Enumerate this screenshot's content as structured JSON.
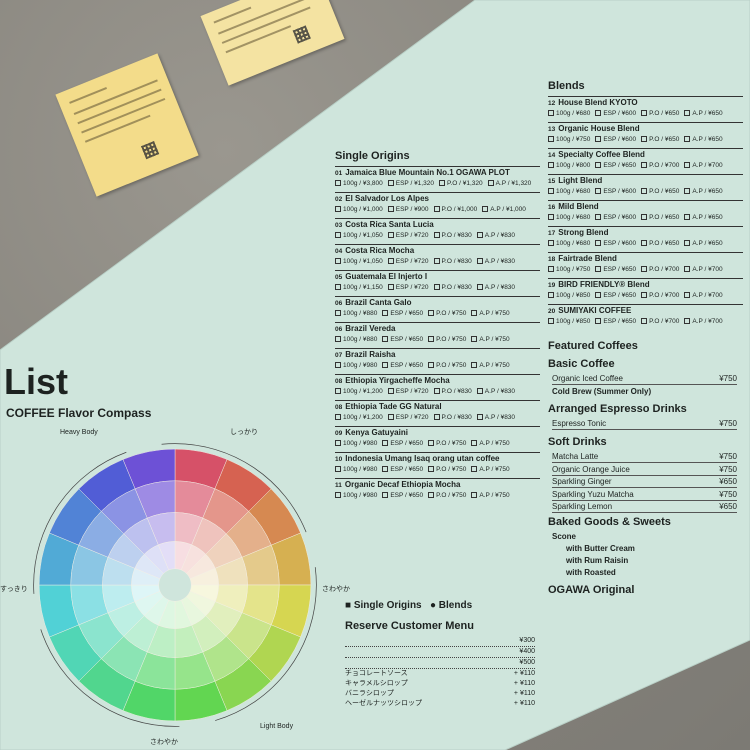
{
  "menu": {
    "title": "List",
    "compass_title": "COFFEE Flavor Compass",
    "wheel_labels": {
      "top": "しっかり",
      "right": "さわやか",
      "bottom": "さわやか",
      "left": "すっきり",
      "full_body": "Heavy Body",
      "light_body": "Light Body"
    },
    "legend": {
      "single": "Single Origins",
      "blends": "Blends"
    },
    "single_origins": {
      "heading": "Single Origins",
      "items": [
        {
          "no": "01",
          "name": "Jamaica Blue Mountain No.1 OGAWA PLOT",
          "prices": [
            "100g / ¥3,800",
            "ESP / ¥1,320",
            "P.O / ¥1,320",
            "A.P / ¥1,320"
          ]
        },
        {
          "no": "02",
          "name": "El Salvador Los Alpes",
          "prices": [
            "100g / ¥1,000",
            "ESP / ¥900",
            "P.O / ¥1,000",
            "A.P / ¥1,000"
          ]
        },
        {
          "no": "03",
          "name": "Costa Rica Santa Lucia",
          "prices": [
            "100g / ¥1,050",
            "ESP / ¥720",
            "P.O / ¥830",
            "A.P / ¥830"
          ]
        },
        {
          "no": "04",
          "name": "Costa Rica Mocha",
          "prices": [
            "100g / ¥1,050",
            "ESP / ¥720",
            "P.O / ¥830",
            "A.P / ¥830"
          ]
        },
        {
          "no": "05",
          "name": "Guatemala El Injerto I",
          "prices": [
            "100g / ¥1,150",
            "ESP / ¥720",
            "P.O / ¥830",
            "A.P / ¥830"
          ]
        },
        {
          "no": "06",
          "name": "Brazil Canta Galo",
          "prices": [
            "100g / ¥880",
            "ESP / ¥650",
            "P.O / ¥750",
            "A.P / ¥750"
          ]
        },
        {
          "no": "06",
          "name": "Brazil Vereda",
          "prices": [
            "100g / ¥880",
            "ESP / ¥650",
            "P.O / ¥750",
            "A.P / ¥750"
          ]
        },
        {
          "no": "07",
          "name": "Brazil Raisha",
          "prices": [
            "100g / ¥980",
            "ESP / ¥650",
            "P.O / ¥750",
            "A.P / ¥750"
          ]
        },
        {
          "no": "08",
          "name": "Ethiopia Yirgacheffe Mocha",
          "prices": [
            "100g / ¥1,200",
            "ESP / ¥720",
            "P.O / ¥830",
            "A.P / ¥830"
          ]
        },
        {
          "no": "08",
          "name": "Ethiopia Tade GG Natural",
          "prices": [
            "100g / ¥1,200",
            "ESP / ¥720",
            "P.O / ¥830",
            "A.P / ¥830"
          ]
        },
        {
          "no": "09",
          "name": "Kenya Gatuyaini",
          "prices": [
            "100g / ¥980",
            "ESP / ¥650",
            "P.O / ¥750",
            "A.P / ¥750"
          ]
        },
        {
          "no": "10",
          "name": "Indonesia Umang Isaq orang utan coffee",
          "prices": [
            "100g / ¥980",
            "ESP / ¥650",
            "P.O / ¥750",
            "A.P / ¥750"
          ]
        },
        {
          "no": "11",
          "name": "Organic Decaf Ethiopia Mocha",
          "prices": [
            "100g / ¥980",
            "ESP / ¥650",
            "P.O / ¥750",
            "A.P / ¥750"
          ]
        }
      ]
    },
    "blends": {
      "heading": "Blends",
      "items": [
        {
          "no": "12",
          "name": "House Blend KYOTO",
          "prices": [
            "100g / ¥680",
            "ESP / ¥600",
            "P.O / ¥650",
            "A.P / ¥650"
          ]
        },
        {
          "no": "13",
          "name": "Organic House Blend",
          "prices": [
            "100g / ¥750",
            "ESP / ¥600",
            "P.O / ¥650",
            "A.P / ¥650"
          ]
        },
        {
          "no": "14",
          "name": "Specialty Coffee Blend",
          "prices": [
            "100g / ¥800",
            "ESP / ¥650",
            "P.O / ¥700",
            "A.P / ¥700"
          ]
        },
        {
          "no": "15",
          "name": "Light Blend",
          "prices": [
            "100g / ¥680",
            "ESP / ¥600",
            "P.O / ¥650",
            "A.P / ¥650"
          ]
        },
        {
          "no": "16",
          "name": "Mild Blend",
          "prices": [
            "100g / ¥680",
            "ESP / ¥600",
            "P.O / ¥650",
            "A.P / ¥650"
          ]
        },
        {
          "no": "17",
          "name": "Strong Blend",
          "prices": [
            "100g / ¥680",
            "ESP / ¥600",
            "P.O / ¥650",
            "A.P / ¥650"
          ]
        },
        {
          "no": "18",
          "name": "Fairtrade Blend",
          "prices": [
            "100g / ¥750",
            "ESP / ¥650",
            "P.O / ¥700",
            "A.P / ¥700"
          ]
        },
        {
          "no": "19",
          "name": "BIRD FRIENDLY® Blend",
          "prices": [
            "100g / ¥850",
            "ESP / ¥650",
            "P.O / ¥700",
            "A.P / ¥700"
          ]
        },
        {
          "no": "20",
          "name": "SUMIYAKI COFFEE",
          "prices": [
            "100g / ¥850",
            "ESP / ¥650",
            "P.O / ¥700",
            "A.P / ¥700"
          ]
        }
      ]
    },
    "featured": {
      "heading": "Featured Coffees"
    },
    "basic": {
      "heading": "Basic Coffee",
      "items": [
        "Organic Iced Coffee",
        "Cold Brew (Summer Only)"
      ],
      "price": "¥750"
    },
    "espresso": {
      "heading": "Arranged Espresso Drinks",
      "items": [
        {
          "name": "Espresso Tonic",
          "price": "¥750"
        }
      ]
    },
    "soft": {
      "heading": "Soft Drinks",
      "items": [
        {
          "name": "Matcha Latte",
          "price": "¥750"
        },
        {
          "name": "Organic Orange Juice",
          "price": "¥750"
        },
        {
          "name": "Sparkling Ginger",
          "price": "¥650"
        },
        {
          "name": "Sparkling Yuzu Matcha",
          "price": "¥750"
        },
        {
          "name": "Sparkling Lemon",
          "price": "¥650"
        }
      ]
    },
    "baked": {
      "heading": "Baked Goods & Sweets",
      "items": [
        "Scone",
        "with Butter Cream",
        "with Rum Raisin",
        "with Roasted"
      ]
    },
    "ogawa": "OGAWA Original",
    "reserve": {
      "heading": "Reserve Customer Menu",
      "prices": [
        "¥300",
        "¥400",
        "¥500"
      ],
      "syrups": [
        "チョコレートソース",
        "キャラメルシロップ",
        "バニラシロップ",
        "ヘーゼルナッツシロップ"
      ],
      "syrup_price": "+ ¥110"
    }
  },
  "colors": {
    "paper": "#cfe5dc",
    "note": "#f3dc8a"
  }
}
